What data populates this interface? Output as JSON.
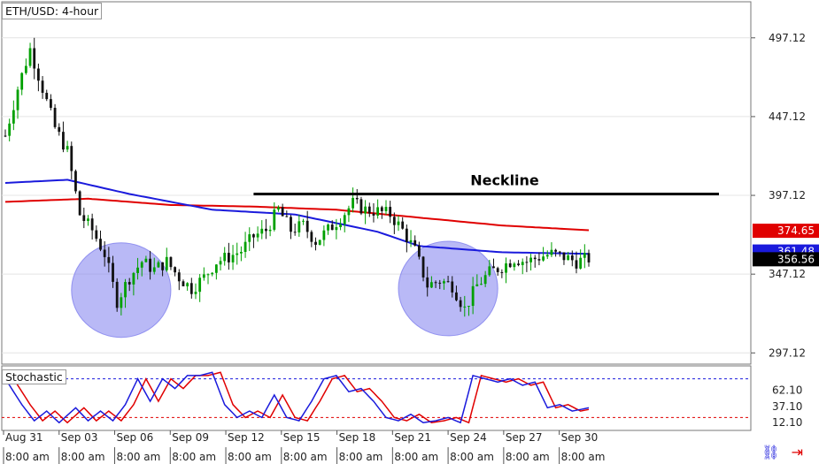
{
  "chart_data": {
    "type": "candlestick",
    "title": "ETH/USD: 4-hour",
    "indicator_label": "Stochastic",
    "annotation": "Neckline",
    "y_ticks": [
      "497.12",
      "447.12",
      "397.12",
      "347.12",
      "297.12"
    ],
    "ylim": [
      290,
      520
    ],
    "price_labels": {
      "red_ma": "374.65",
      "blue_ma": "361.48",
      "last": "356.56"
    },
    "stoch_ticks": [
      "62.10",
      "37.10",
      "12.10"
    ],
    "stoch_levels": [
      80,
      20
    ],
    "x_date_labels": [
      "Aug 31",
      "Sep 03",
      "Sep 06",
      "Sep 09",
      "Sep 12",
      "Sep 15",
      "Sep 18",
      "Sep 21",
      "Sep 24",
      "Sep 27",
      "Sep 30"
    ],
    "x_time_labels": [
      "8:00 am",
      "8:00 am",
      "8:00 am",
      "8:00 am",
      "8:00 am",
      "8:00 am",
      "8:00 am",
      "8:00 am",
      "8:00 am",
      "8:00 am",
      "8:00 am"
    ],
    "close_path": [
      [
        0,
        435
      ],
      [
        3,
        465
      ],
      [
        6,
        490
      ],
      [
        9,
        465
      ],
      [
        12,
        440
      ],
      [
        15,
        425
      ],
      [
        18,
        385
      ],
      [
        21,
        375
      ],
      [
        24,
        360
      ],
      [
        27,
        330
      ],
      [
        30,
        345
      ],
      [
        33,
        355
      ],
      [
        36,
        350
      ],
      [
        39,
        355
      ],
      [
        42,
        345
      ],
      [
        45,
        338
      ],
      [
        48,
        345
      ],
      [
        51,
        355
      ],
      [
        54,
        358
      ],
      [
        57,
        362
      ],
      [
        60,
        371
      ],
      [
        63,
        375
      ],
      [
        66,
        388
      ],
      [
        69,
        375
      ],
      [
        72,
        378
      ],
      [
        75,
        368
      ],
      [
        78,
        375
      ],
      [
        81,
        383
      ],
      [
        84,
        392
      ],
      [
        87,
        388
      ],
      [
        90,
        387
      ],
      [
        93,
        385
      ],
      [
        96,
        375
      ],
      [
        99,
        362
      ],
      [
        102,
        340
      ],
      [
        105,
        343
      ],
      [
        108,
        340
      ],
      [
        111,
        325
      ],
      [
        114,
        340
      ],
      [
        117,
        348
      ],
      [
        120,
        352
      ],
      [
        123,
        357
      ],
      [
        126,
        355
      ],
      [
        129,
        358
      ],
      [
        132,
        360
      ],
      [
        135,
        358
      ],
      [
        138,
        355
      ],
      [
        141,
        357
      ]
    ],
    "red_ma": [
      [
        0,
        393
      ],
      [
        20,
        395
      ],
      [
        40,
        391
      ],
      [
        60,
        390
      ],
      [
        80,
        388
      ],
      [
        100,
        383
      ],
      [
        120,
        378
      ],
      [
        141,
        375
      ]
    ],
    "blue_ma": [
      [
        0,
        405
      ],
      [
        15,
        407
      ],
      [
        30,
        398
      ],
      [
        50,
        388
      ],
      [
        70,
        385
      ],
      [
        90,
        374
      ],
      [
        100,
        365
      ],
      [
        120,
        361
      ],
      [
        141,
        360
      ]
    ],
    "neckline": {
      "y": 398,
      "x_start": 60,
      "x_end": 141
    },
    "stoch_k": [
      [
        0,
        80
      ],
      [
        4,
        40
      ],
      [
        7,
        15
      ],
      [
        10,
        30
      ],
      [
        13,
        12
      ],
      [
        17,
        35
      ],
      [
        20,
        15
      ],
      [
        23,
        30
      ],
      [
        26,
        15
      ],
      [
        29,
        40
      ],
      [
        32,
        80
      ],
      [
        35,
        45
      ],
      [
        38,
        80
      ],
      [
        41,
        65
      ],
      [
        44,
        85
      ],
      [
        47,
        85
      ],
      [
        50,
        90
      ],
      [
        53,
        40
      ],
      [
        56,
        20
      ],
      [
        59,
        30
      ],
      [
        62,
        20
      ],
      [
        65,
        55
      ],
      [
        68,
        20
      ],
      [
        71,
        15
      ],
      [
        74,
        45
      ],
      [
        77,
        80
      ],
      [
        80,
        85
      ],
      [
        83,
        60
      ],
      [
        86,
        65
      ],
      [
        89,
        45
      ],
      [
        92,
        20
      ],
      [
        95,
        15
      ],
      [
        98,
        25
      ],
      [
        101,
        12
      ],
      [
        104,
        15
      ],
      [
        107,
        20
      ],
      [
        110,
        12
      ],
      [
        113,
        85
      ],
      [
        116,
        80
      ],
      [
        119,
        75
      ],
      [
        122,
        80
      ],
      [
        125,
        70
      ],
      [
        128,
        75
      ],
      [
        131,
        35
      ],
      [
        134,
        40
      ],
      [
        137,
        30
      ],
      [
        141,
        35
      ]
    ],
    "ellipses": [
      {
        "cx": 28,
        "cy": 337,
        "rx": 12,
        "ry": 30
      },
      {
        "cx": 107,
        "cy": 338,
        "rx": 12,
        "ry": 30
      }
    ],
    "colors": {
      "up": "#00a000",
      "down": "#111111",
      "red_ma": "#e00000",
      "blue_ma": "#1a1adc",
      "neckline": "#000000",
      "ellipse": "#8080ee",
      "grid": "#e4e4e4"
    }
  },
  "footer": {
    "link_icon": "link-icon",
    "arrow_icon": "arrow-right-bar-icon"
  }
}
